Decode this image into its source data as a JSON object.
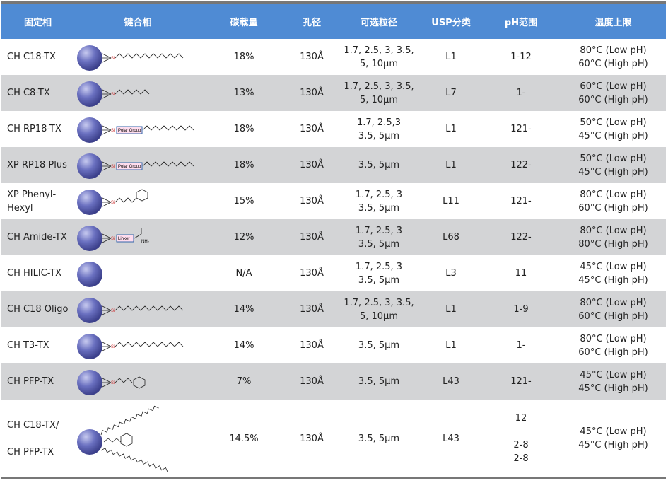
{
  "headers": [
    "固定相",
    "键合相",
    "碳载量",
    "孔径",
    "可选粒径",
    "USP分类",
    "pH范围",
    "温度上限"
  ],
  "colors": {
    "header": "#4f8bd4",
    "stripe": "#d3d4d6",
    "ball": "#5a5fb0"
  },
  "rows": [
    {
      "name": "CH  C18-TX",
      "structure": "c18",
      "carbon": "18%",
      "pore": "130Å",
      "size": "1.7, 2.5, 3, 3.5,\n5, 10μm",
      "usp": "L1",
      "ph": "1-12",
      "temp": "80°C (Low pH)\n60°C (High pH)"
    },
    {
      "name": "CH  C8-TX",
      "structure": "c8",
      "carbon": "13%",
      "pore": "130Å",
      "size": "1.7, 2.5, 3, 3.5,\n5, 10μm",
      "usp": "L7",
      "ph": "1-",
      "temp": "60°C (Low pH)\n60°C (High pH)"
    },
    {
      "name": "CH  RP18-TX",
      "structure": "polar",
      "structure_label": "Polar Group",
      "carbon": "18%",
      "pore": "130Å",
      "size": "1.7, 2.5,3\n3.5, 5μm",
      "usp": "L1",
      "ph": "121-",
      "temp": "50°C (Low pH)\n45°C (High pH)"
    },
    {
      "name": "XP RP18 Plus",
      "structure": "polar",
      "structure_label": "Polar Group",
      "carbon": "18%",
      "pore": "130Å",
      "size": "3.5, 5μm",
      "usp": "L1",
      "ph": "122-",
      "temp": "50°C (Low pH)\n45°C (High pH)"
    },
    {
      "name": "XP Phenyl-\nHexyl",
      "structure": "phenyl",
      "carbon": "15%",
      "pore": "130Å",
      "size": "1.7, 2.5, 3\n3.5, 5μm",
      "usp": "L11",
      "ph": "121-",
      "temp": "80°C (Low pH)\n60°C (High pH)"
    },
    {
      "name": "CH  Amide-TX",
      "structure": "amide",
      "structure_label": "Linker",
      "carbon": "12%",
      "pore": "130Å",
      "size": "1.7, 2.5, 3\n3.5, 5μm",
      "usp": "L68",
      "ph": "122-",
      "temp": "80°C (Low pH)\n80°C (High pH)"
    },
    {
      "name": "CH  HILIC-TX",
      "structure": "bare",
      "carbon": "N/A",
      "pore": "130Å",
      "size": "1.7, 2.5, 3\n3.5, 5μm",
      "usp": "L3",
      "ph": "11",
      "temp": "45°C (Low pH)\n45°C (High pH)"
    },
    {
      "name": "CH  C18  Oligo",
      "structure": "c18",
      "carbon": "14%",
      "pore": "130Å",
      "size": "1.7, 2.5, 3, 3.5,\n5, 10μm",
      "usp": "L1",
      "ph": "1-9",
      "temp": "80°C (Low pH)\n60°C (High pH)"
    },
    {
      "name": "CH  T3-TX",
      "structure": "c18",
      "carbon": "14%",
      "pore": "130Å",
      "size": "3.5, 5μm",
      "usp": "L1",
      "ph": "1-",
      "temp": "80°C (Low pH)\n60°C (High pH)"
    },
    {
      "name": "CH  PFP-TX",
      "structure": "pfp",
      "carbon": "7%",
      "pore": "130Å",
      "size": "3.5, 5μm",
      "usp": "L43",
      "ph": "121-",
      "temp": "45°C (Low pH)\n45°C (High pH)"
    },
    {
      "name": "CH  C18-TX/\n\nCH  PFP-TX",
      "structure": "mixed",
      "carbon": "14.5%",
      "pore": "130Å",
      "size": "3.5, 5μm",
      "usp": "L43",
      "ph": "12\n\n2-8\n2-8",
      "temp": "45°C (Low pH)\n45°C (High pH)"
    }
  ]
}
